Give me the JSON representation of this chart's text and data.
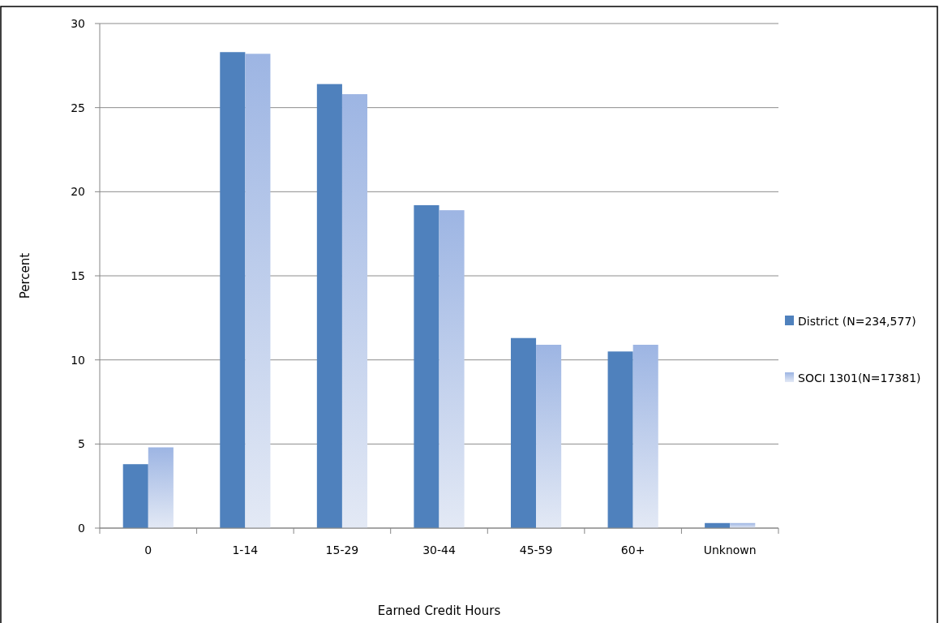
{
  "chart_data": {
    "type": "bar",
    "xlabel": "Earned Credit Hours",
    "ylabel": "Percent",
    "categories": [
      "0",
      "1-14",
      "15-29",
      "30-44",
      "45-59",
      "60+",
      "Unknown"
    ],
    "series": [
      {
        "name": "District (N=234,577)",
        "color": "#4f81bd",
        "values": [
          3.8,
          28.3,
          26.4,
          19.2,
          11.3,
          10.5,
          0.3
        ]
      },
      {
        "name": "SOCI 1301(N=17381)",
        "color": "#9db5e3",
        "values": [
          4.8,
          28.2,
          25.8,
          18.9,
          10.9,
          10.9,
          0.3
        ]
      }
    ],
    "ylim": [
      0,
      30
    ],
    "yticks": [
      0,
      5,
      10,
      15,
      20,
      25,
      30
    ],
    "grid": "y",
    "legend": "right"
  }
}
